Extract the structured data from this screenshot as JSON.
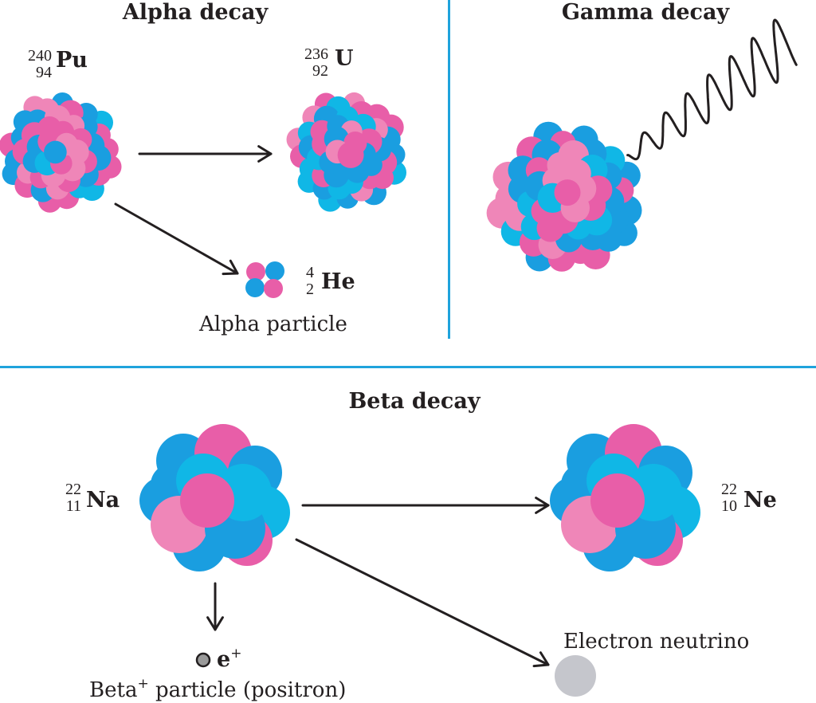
{
  "panels": {
    "alpha": {
      "title": "Alpha decay",
      "parent": {
        "mass": "240",
        "atomic": "94",
        "symbol": "Pu"
      },
      "daughter": {
        "mass": "236",
        "atomic": "92",
        "symbol": "U"
      },
      "emitted": {
        "mass": "4",
        "atomic": "2",
        "symbol": "He"
      },
      "emitted_label": "Alpha particle"
    },
    "gamma": {
      "title": "Gamma decay"
    },
    "beta": {
      "title": "Beta decay",
      "parent": {
        "mass": "22",
        "atomic": "11",
        "symbol": "Na"
      },
      "daughter": {
        "mass": "22",
        "atomic": "10",
        "symbol": "Ne"
      },
      "positron_symbol": "e",
      "positron_charge": "+",
      "positron_label_prefix": "Beta",
      "positron_label_sup": "+",
      "positron_label_suffix": "particle (positron)",
      "neutrino_label": "Electron neutrino"
    }
  },
  "colors": {
    "divider": "#1fa3dc",
    "proton_pink": "#e85ea8",
    "proton_light_pink": "#ef86b8",
    "neutron_blue": "#1a9ee0",
    "neutron_cyan": "#10b7e6",
    "arrow": "#231f20",
    "neutrino": "#c5c6cc",
    "positron": "#9a9a9a"
  }
}
